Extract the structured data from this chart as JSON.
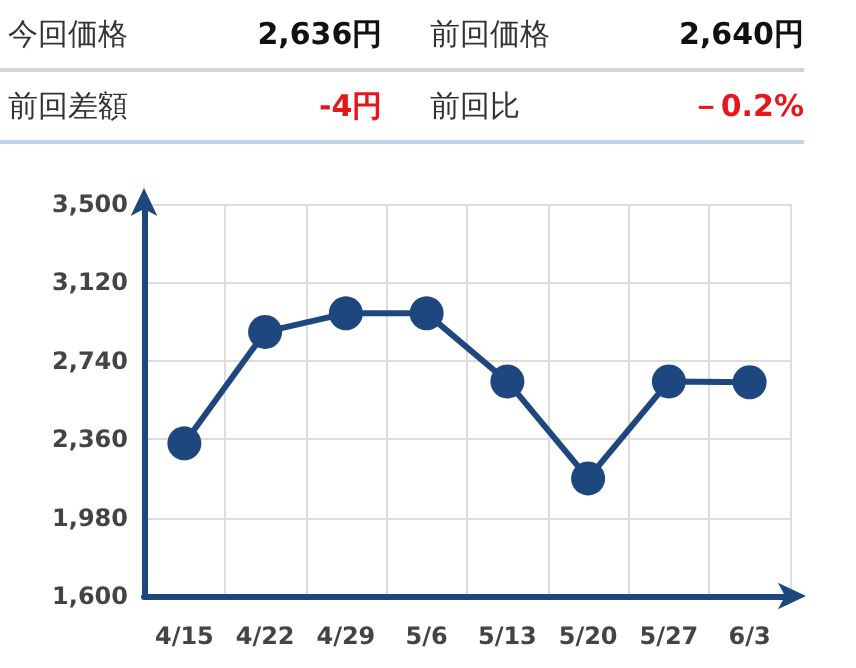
{
  "chart_data": {
    "type": "line",
    "annotations": [
      "今回価格",
      "2,636円",
      "前回価格",
      "2,640円",
      "前回差額",
      "-4円",
      "前回比",
      "－0.2%"
    ],
    "categories": [
      "4/15",
      "4/22",
      "4/29",
      "5/6",
      "5/13",
      "5/20",
      "5/27",
      "6/3"
    ],
    "series": [
      {
        "color": "#1f477f",
        "values": [
          2340,
          2880,
          2970,
          2970,
          2640,
          2170,
          2640,
          2636
        ]
      }
    ],
    "ylim": [
      1600,
      3500
    ],
    "yticks": [
      {
        "value": 1600,
        "label": "1,600"
      },
      {
        "value": 1980,
        "label": "1,980"
      },
      {
        "value": 2360,
        "label": "2,360"
      },
      {
        "value": 2740,
        "label": "2,740"
      },
      {
        "value": 3120,
        "label": "3,120"
      },
      {
        "value": 3500,
        "label": "3,500"
      }
    ],
    "grid": true,
    "marker": "circle",
    "line_style": "solid"
  }
}
